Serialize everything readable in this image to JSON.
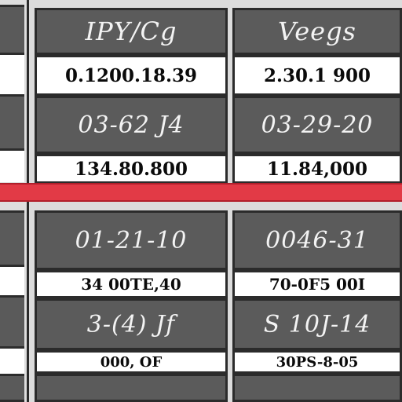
{
  "table": {
    "columns": [
      {
        "header": "IPY/Cg"
      },
      {
        "header": "Veegs"
      }
    ],
    "rows_top": [
      {
        "col1": "0.1200.18.39",
        "col2": "2.30.1 900"
      },
      {
        "col1": "03-62 J4",
        "col2": "03-29-20"
      },
      {
        "col1": "134.80.800",
        "col2": "11.84,000"
      }
    ],
    "rows_bottom": [
      {
        "col1": "01-21-10",
        "col2": "0046-31"
      },
      {
        "col1": "34 00TE,40",
        "col2": "70-0F5 00I"
      },
      {
        "col1": "3-(4) Jf",
        "col2": "S 10J-14"
      },
      {
        "col1": "000, OF",
        "col2": "30PS-8-05"
      }
    ]
  },
  "icons": {
    "left_gear": "gear-icon"
  },
  "colors": {
    "header_bg": "#5b5b5b",
    "cell_bg": "#ffffff",
    "border": "#2b2b2b",
    "divider_red": "#e23a46"
  }
}
